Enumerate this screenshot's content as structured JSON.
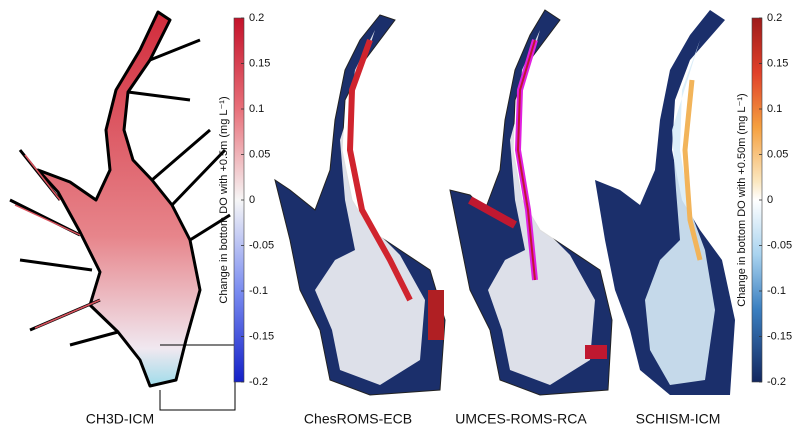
{
  "panels": [
    {
      "label": "CH3D-ICM"
    },
    {
      "label": "ChesROMS-ECB"
    },
    {
      "label": "UMCES-ROMS-RCA"
    },
    {
      "label": "SCHISM-ICM"
    }
  ],
  "colorbars": [
    {
      "label": "Change in bottom DO with +0.5m (mg L⁻¹)",
      "lim": [
        -0.2,
        0.2
      ],
      "ticks": [
        0.2,
        0.15,
        0.1,
        0.05,
        0,
        -0.05,
        -0.1,
        -0.15,
        -0.2
      ]
    },
    {
      "label": "Change in bottom DO with +0.50m (mg L⁻¹)",
      "lim": [
        -0.2,
        0.2
      ],
      "ticks": [
        0.2,
        0.15,
        0.1,
        0.05,
        0,
        -0.05,
        -0.1,
        -0.15,
        -0.2
      ]
    }
  ]
}
